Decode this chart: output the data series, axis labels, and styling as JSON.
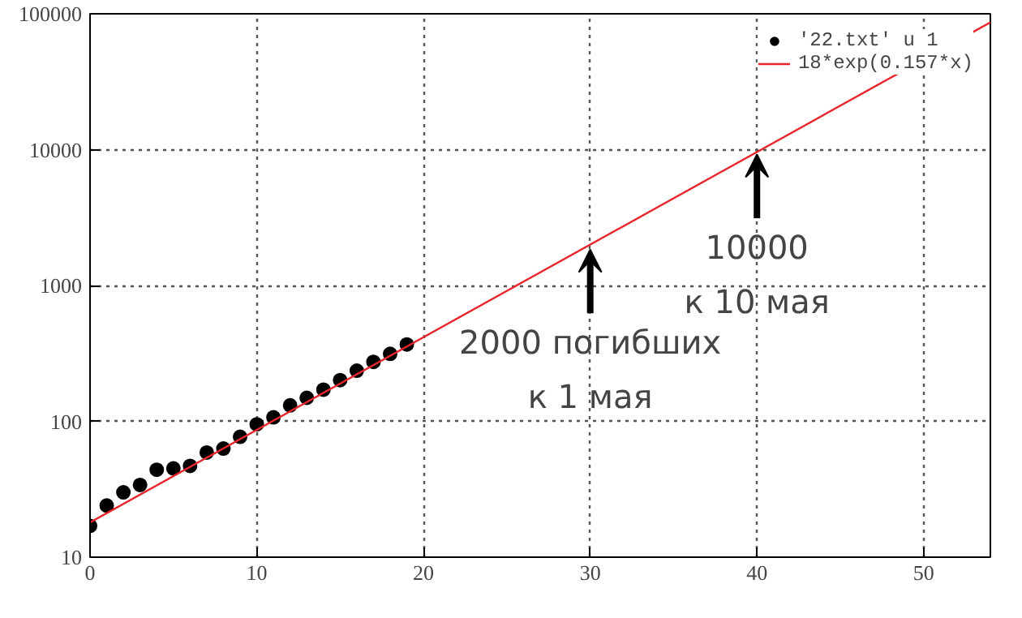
{
  "chart_data": {
    "type": "scatter",
    "log": "y",
    "xlim": [
      0,
      54
    ],
    "ylim": [
      10,
      100000
    ],
    "xticks": [
      0,
      10,
      20,
      30,
      40,
      50
    ],
    "yticks": [
      10,
      100,
      1000,
      10000,
      100000
    ],
    "grid": true,
    "legend": "top right",
    "series": [
      {
        "name": "'22.txt' u 1",
        "marker": "circle",
        "color": "#000000",
        "x": [
          0,
          1,
          2,
          3,
          4,
          5,
          6,
          7,
          8,
          9,
          10,
          11,
          12,
          13,
          14,
          15,
          16,
          17,
          18,
          19
        ],
        "values": [
          17,
          24,
          30,
          34,
          44,
          45,
          47,
          59,
          63,
          77,
          95,
          107,
          131,
          149,
          171,
          201,
          236,
          274,
          314,
          368
        ]
      },
      {
        "name": "18*exp(0.157*x)",
        "type": "line",
        "color": "#e8262b",
        "line_style": "solid",
        "x": [
          0,
          54
        ],
        "values": [
          18,
          86500
        ]
      }
    ],
    "annotations": [
      {
        "text": "2000 погибших\nк 1 мая",
        "x": 30,
        "y": 2000
      },
      {
        "text": "10000\nк 10 мая",
        "x": 40,
        "y": 10000
      }
    ]
  }
}
